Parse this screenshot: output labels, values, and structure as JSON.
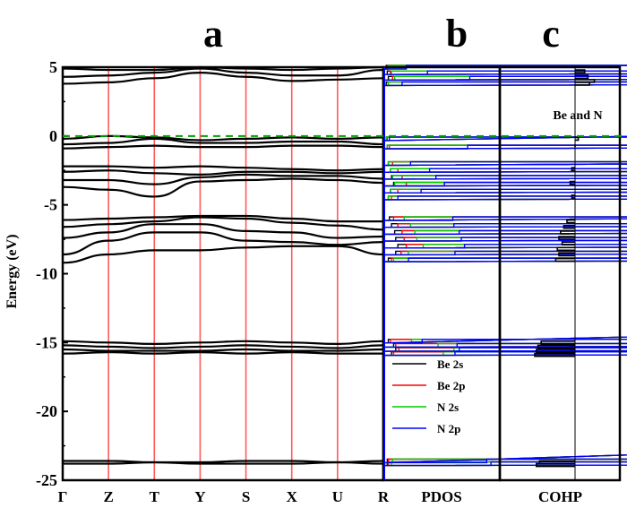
{
  "panel_labels": {
    "a": "a",
    "b": "b",
    "c": "c"
  },
  "y_axis_label": "Energy (eV)",
  "annotation_cohp": "Be and N",
  "chart_data": [
    {
      "type": "line",
      "panel": "a",
      "title": "",
      "xlabel": "",
      "ylabel": "Energy (eV)",
      "ylim": [
        -25,
        5
      ],
      "yticks": [
        5,
        0,
        -5,
        -10,
        -15,
        -20,
        -25
      ],
      "kpoints": [
        "Γ",
        "Z",
        "T",
        "Y",
        "S",
        "X",
        "U",
        "R"
      ],
      "fermi_level": 0,
      "k_index": [
        0,
        1,
        2,
        3,
        4,
        5,
        6,
        7
      ],
      "bands": [
        [
          -23.6,
          -23.6,
          -23.7,
          -23.7,
          -23.6,
          -23.6,
          -23.7,
          -23.6
        ],
        [
          -23.8,
          -23.8,
          -23.7,
          -23.8,
          -23.8,
          -23.8,
          -23.7,
          -23.8
        ],
        [
          -14.9,
          -15.0,
          -15.1,
          -15.0,
          -14.9,
          -15.0,
          -15.1,
          -14.9
        ],
        [
          -15.2,
          -15.3,
          -15.4,
          -15.3,
          -15.2,
          -15.3,
          -15.4,
          -15.2
        ],
        [
          -15.5,
          -15.6,
          -15.6,
          -15.6,
          -15.5,
          -15.6,
          -15.6,
          -15.5
        ],
        [
          -15.8,
          -15.7,
          -15.8,
          -15.7,
          -15.8,
          -15.7,
          -15.8,
          -15.8
        ],
        [
          -9.2,
          -8.6,
          -8.3,
          -8.3,
          -8.1,
          -8.0,
          -8.0,
          -8.6
        ],
        [
          -8.6,
          -7.6,
          -7.0,
          -7.0,
          -7.6,
          -7.7,
          -7.9,
          -7.7
        ],
        [
          -7.4,
          -7.0,
          -6.4,
          -6.4,
          -6.9,
          -7.0,
          -7.4,
          -7.3
        ],
        [
          -6.6,
          -6.4,
          -6.2,
          -5.9,
          -6.0,
          -6.3,
          -6.5,
          -6.8
        ],
        [
          -6.1,
          -6.0,
          -5.9,
          -5.8,
          -5.8,
          -6.0,
          -6.2,
          -6.2
        ],
        [
          -3.7,
          -3.9,
          -4.4,
          -3.3,
          -3.2,
          -3.1,
          -3.2,
          -3.4
        ],
        [
          -3.2,
          -3.2,
          -3.5,
          -3.0,
          -2.8,
          -2.9,
          -2.9,
          -3.1
        ],
        [
          -2.6,
          -2.5,
          -2.7,
          -2.8,
          -2.6,
          -2.6,
          -2.7,
          -2.6
        ],
        [
          -2.2,
          -2.2,
          -2.3,
          -2.2,
          -2.3,
          -2.4,
          -2.5,
          -2.4
        ],
        [
          -0.9,
          -0.8,
          -0.7,
          -0.8,
          -0.8,
          -0.7,
          -0.7,
          -0.8
        ],
        [
          -0.6,
          -0.5,
          -0.2,
          -0.5,
          -0.5,
          -0.4,
          -0.4,
          -0.6
        ],
        [
          -0.2,
          0.0,
          -0.1,
          -0.3,
          -0.2,
          -0.1,
          -0.2,
          -0.1
        ],
        [
          3.8,
          3.9,
          4.2,
          4.6,
          4.3,
          4.0,
          4.1,
          4.2
        ],
        [
          4.3,
          4.4,
          4.6,
          4.9,
          4.6,
          4.4,
          4.4,
          4.8
        ],
        [
          4.9,
          4.8,
          4.8,
          5.0,
          4.9,
          4.8,
          4.9,
          5.0
        ]
      ]
    },
    {
      "type": "line",
      "panel": "b",
      "title": "",
      "xlabel": "PDOS",
      "ylim": [
        -25,
        5
      ],
      "legend_position": "lower right",
      "series": [
        {
          "name": "Be 2s",
          "color": "#000000",
          "energy": [
            -23.8,
            -23.6,
            -15.8,
            -15.5,
            -15.2,
            -14.9,
            -9.0,
            -8.5,
            -8.0,
            -7.5,
            -7.0,
            -6.5,
            -6.0,
            -4.5,
            -4.0,
            -3.5,
            -3.0,
            -2.5,
            -2.0,
            -0.8,
            -0.2,
            3.8,
            4.2,
            4.6,
            5.0
          ],
          "dos": [
            0.2,
            0.2,
            0.6,
            1.0,
            0.8,
            0.3,
            0.3,
            1.0,
            1.2,
            1.0,
            0.9,
            0.6,
            0.4,
            0.3,
            0.5,
            0.8,
            0.6,
            0.5,
            0.3,
            0.2,
            0.1,
            0.1,
            0.3,
            0.2,
            0.1
          ]
        },
        {
          "name": "Be 2p",
          "color": "#ff0000",
          "energy": [
            -23.8,
            -23.6,
            -15.8,
            -15.5,
            -15.2,
            -14.9,
            -9.0,
            -8.5,
            -8.0,
            -7.5,
            -7.0,
            -6.5,
            -6.0,
            -4.5,
            -4.0,
            -3.5,
            -3.0,
            -2.5,
            -2.0,
            -0.8,
            -0.2,
            3.8,
            4.2,
            4.6,
            5.0
          ],
          "dos": [
            0.3,
            0.3,
            0.8,
            1.3,
            1.0,
            0.5,
            0.6,
            1.5,
            2.0,
            1.8,
            1.6,
            1.2,
            0.8,
            0.6,
            1.2,
            2.0,
            1.6,
            1.2,
            0.7,
            0.4,
            0.2,
            0.3,
            0.7,
            0.5,
            0.2
          ]
        },
        {
          "name": "N 2s",
          "color": "#00cc00",
          "energy": [
            -23.8,
            -23.6,
            -15.8,
            -15.5,
            -15.2,
            -14.9,
            -9.0,
            -8.5,
            -8.0,
            -7.5,
            -7.0,
            -6.5,
            -6.0,
            -4.5,
            -4.0,
            -3.5,
            -3.0,
            -2.5,
            -2.0,
            -0.8,
            -0.2,
            3.8,
            4.2,
            4.6,
            5.0
          ],
          "dos": [
            0.6,
            0.7,
            5.5,
            6.5,
            5.0,
            2.5,
            0.8,
            2.2,
            3.6,
            3.0,
            2.8,
            2.4,
            1.8,
            0.3,
            0.5,
            0.9,
            0.7,
            0.5,
            0.3,
            0.2,
            0.1,
            0.3,
            0.9,
            0.6,
            0.3
          ]
        },
        {
          "name": "N 2p",
          "color": "#0000ff",
          "energy": [
            -23.8,
            -23.6,
            -15.8,
            -15.5,
            -15.2,
            -14.9,
            -9.0,
            -8.5,
            -8.0,
            -7.5,
            -7.0,
            -6.5,
            -6.0,
            -4.5,
            -4.0,
            -3.5,
            -3.0,
            -2.5,
            -2.0,
            -0.8,
            -0.2,
            3.8,
            4.2,
            4.6,
            5.0
          ],
          "dos": [
            10.0,
            9.6,
            6.6,
            7.0,
            6.8,
            3.5,
            2.2,
            6.6,
            7.5,
            7.2,
            7.0,
            6.5,
            6.4,
            1.2,
            3.4,
            5.6,
            4.8,
            4.2,
            2.4,
            7.8,
            0.4,
            1.6,
            8.0,
            4.0,
            2.0
          ]
        }
      ]
    },
    {
      "type": "line",
      "panel": "c",
      "title": "",
      "xlabel": "COHP",
      "ylim": [
        -25,
        5
      ],
      "series": [
        {
          "name": "Be and N",
          "color": "#000000",
          "energy": [
            -23.9,
            -23.7,
            -15.9,
            -15.6,
            -15.3,
            -15.0,
            -9.0,
            -8.6,
            -8.2,
            -7.8,
            -7.4,
            -7.0,
            -6.6,
            -6.2,
            -4.4,
            -3.4,
            -2.4,
            -0.7,
            -0.2,
            3.8,
            4.0,
            4.3,
            4.7
          ],
          "cohp": [
            -2.4,
            -2.2,
            -2.5,
            -2.4,
            -2.3,
            -2.1,
            -1.2,
            -1.0,
            -1.1,
            -0.8,
            -1.0,
            -0.9,
            -0.7,
            -0.5,
            -0.2,
            -0.3,
            -0.2,
            0.0,
            0.2,
            0.9,
            1.2,
            0.8,
            0.6
          ]
        }
      ]
    }
  ]
}
